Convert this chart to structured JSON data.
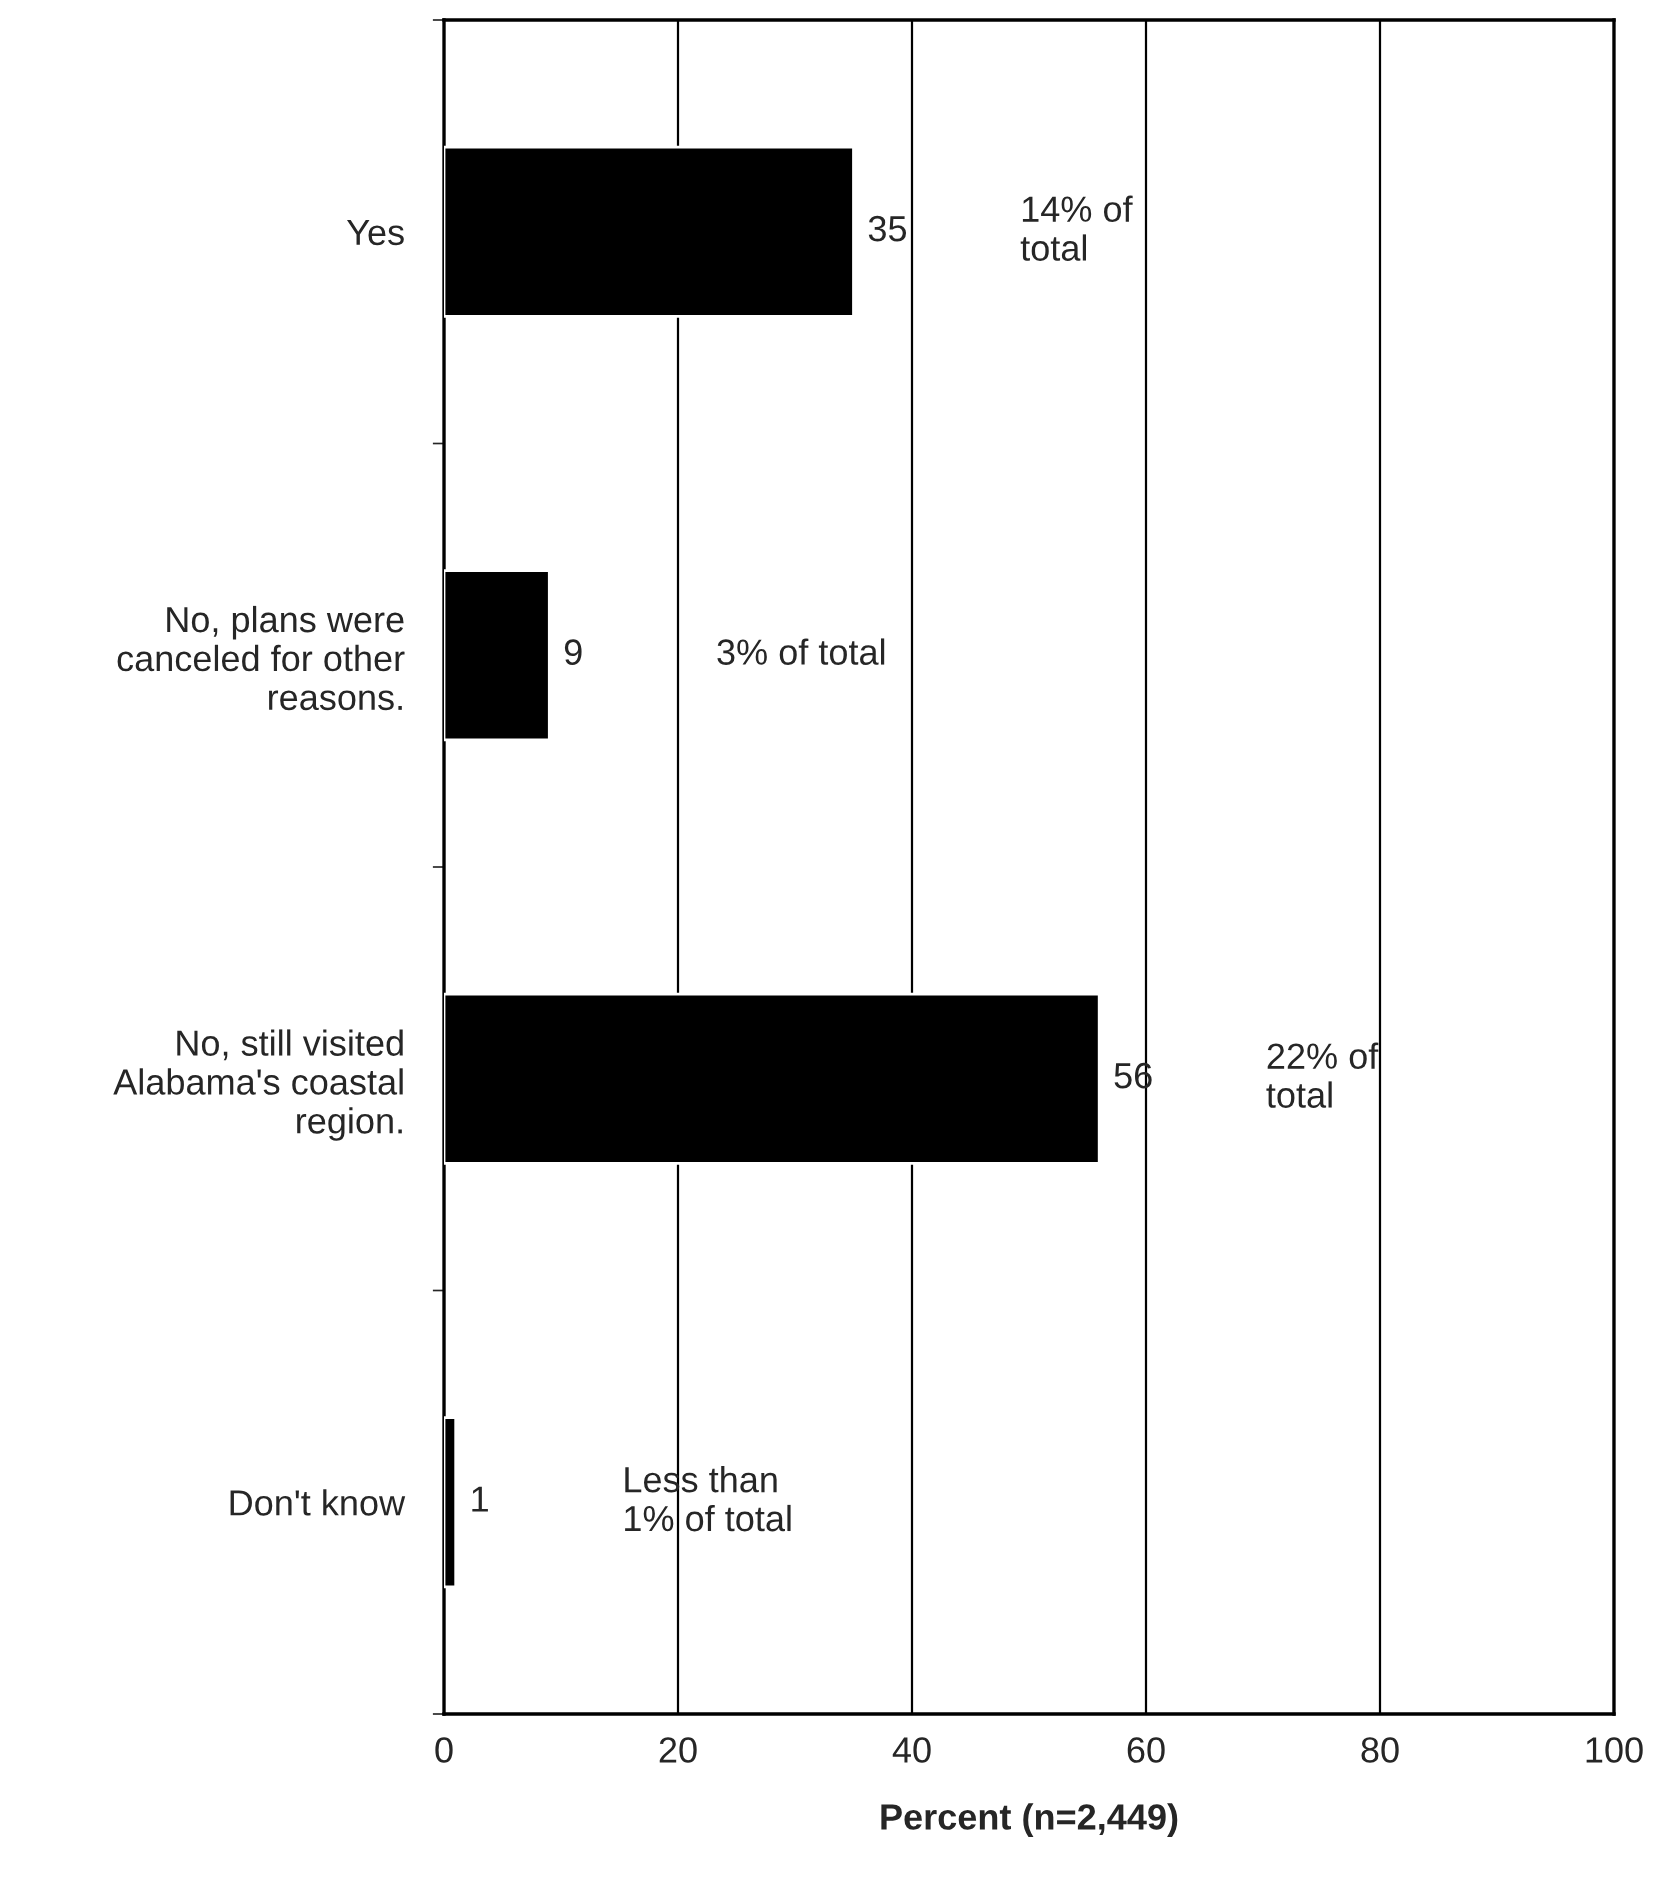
{
  "chart_data": {
    "type": "bar",
    "orientation": "horizontal",
    "xlabel": "Percent (n=2,449)",
    "categories": [
      "Yes",
      "No, plans were\ncanceled for other\nreasons.",
      "No, still visited\nAlabama's coastal\nregion.",
      "Don't know"
    ],
    "values": [
      35,
      9,
      56,
      1
    ],
    "color": "#000000",
    "data_labels": true,
    "xlim": [
      0,
      100
    ],
    "xticks": [
      0,
      20,
      40,
      60,
      80,
      100
    ],
    "grid": "x",
    "annotations": [
      "14% of\ntotal",
      "3% of total",
      "22% of\ntotal",
      "Less than\n1% of total"
    ]
  }
}
